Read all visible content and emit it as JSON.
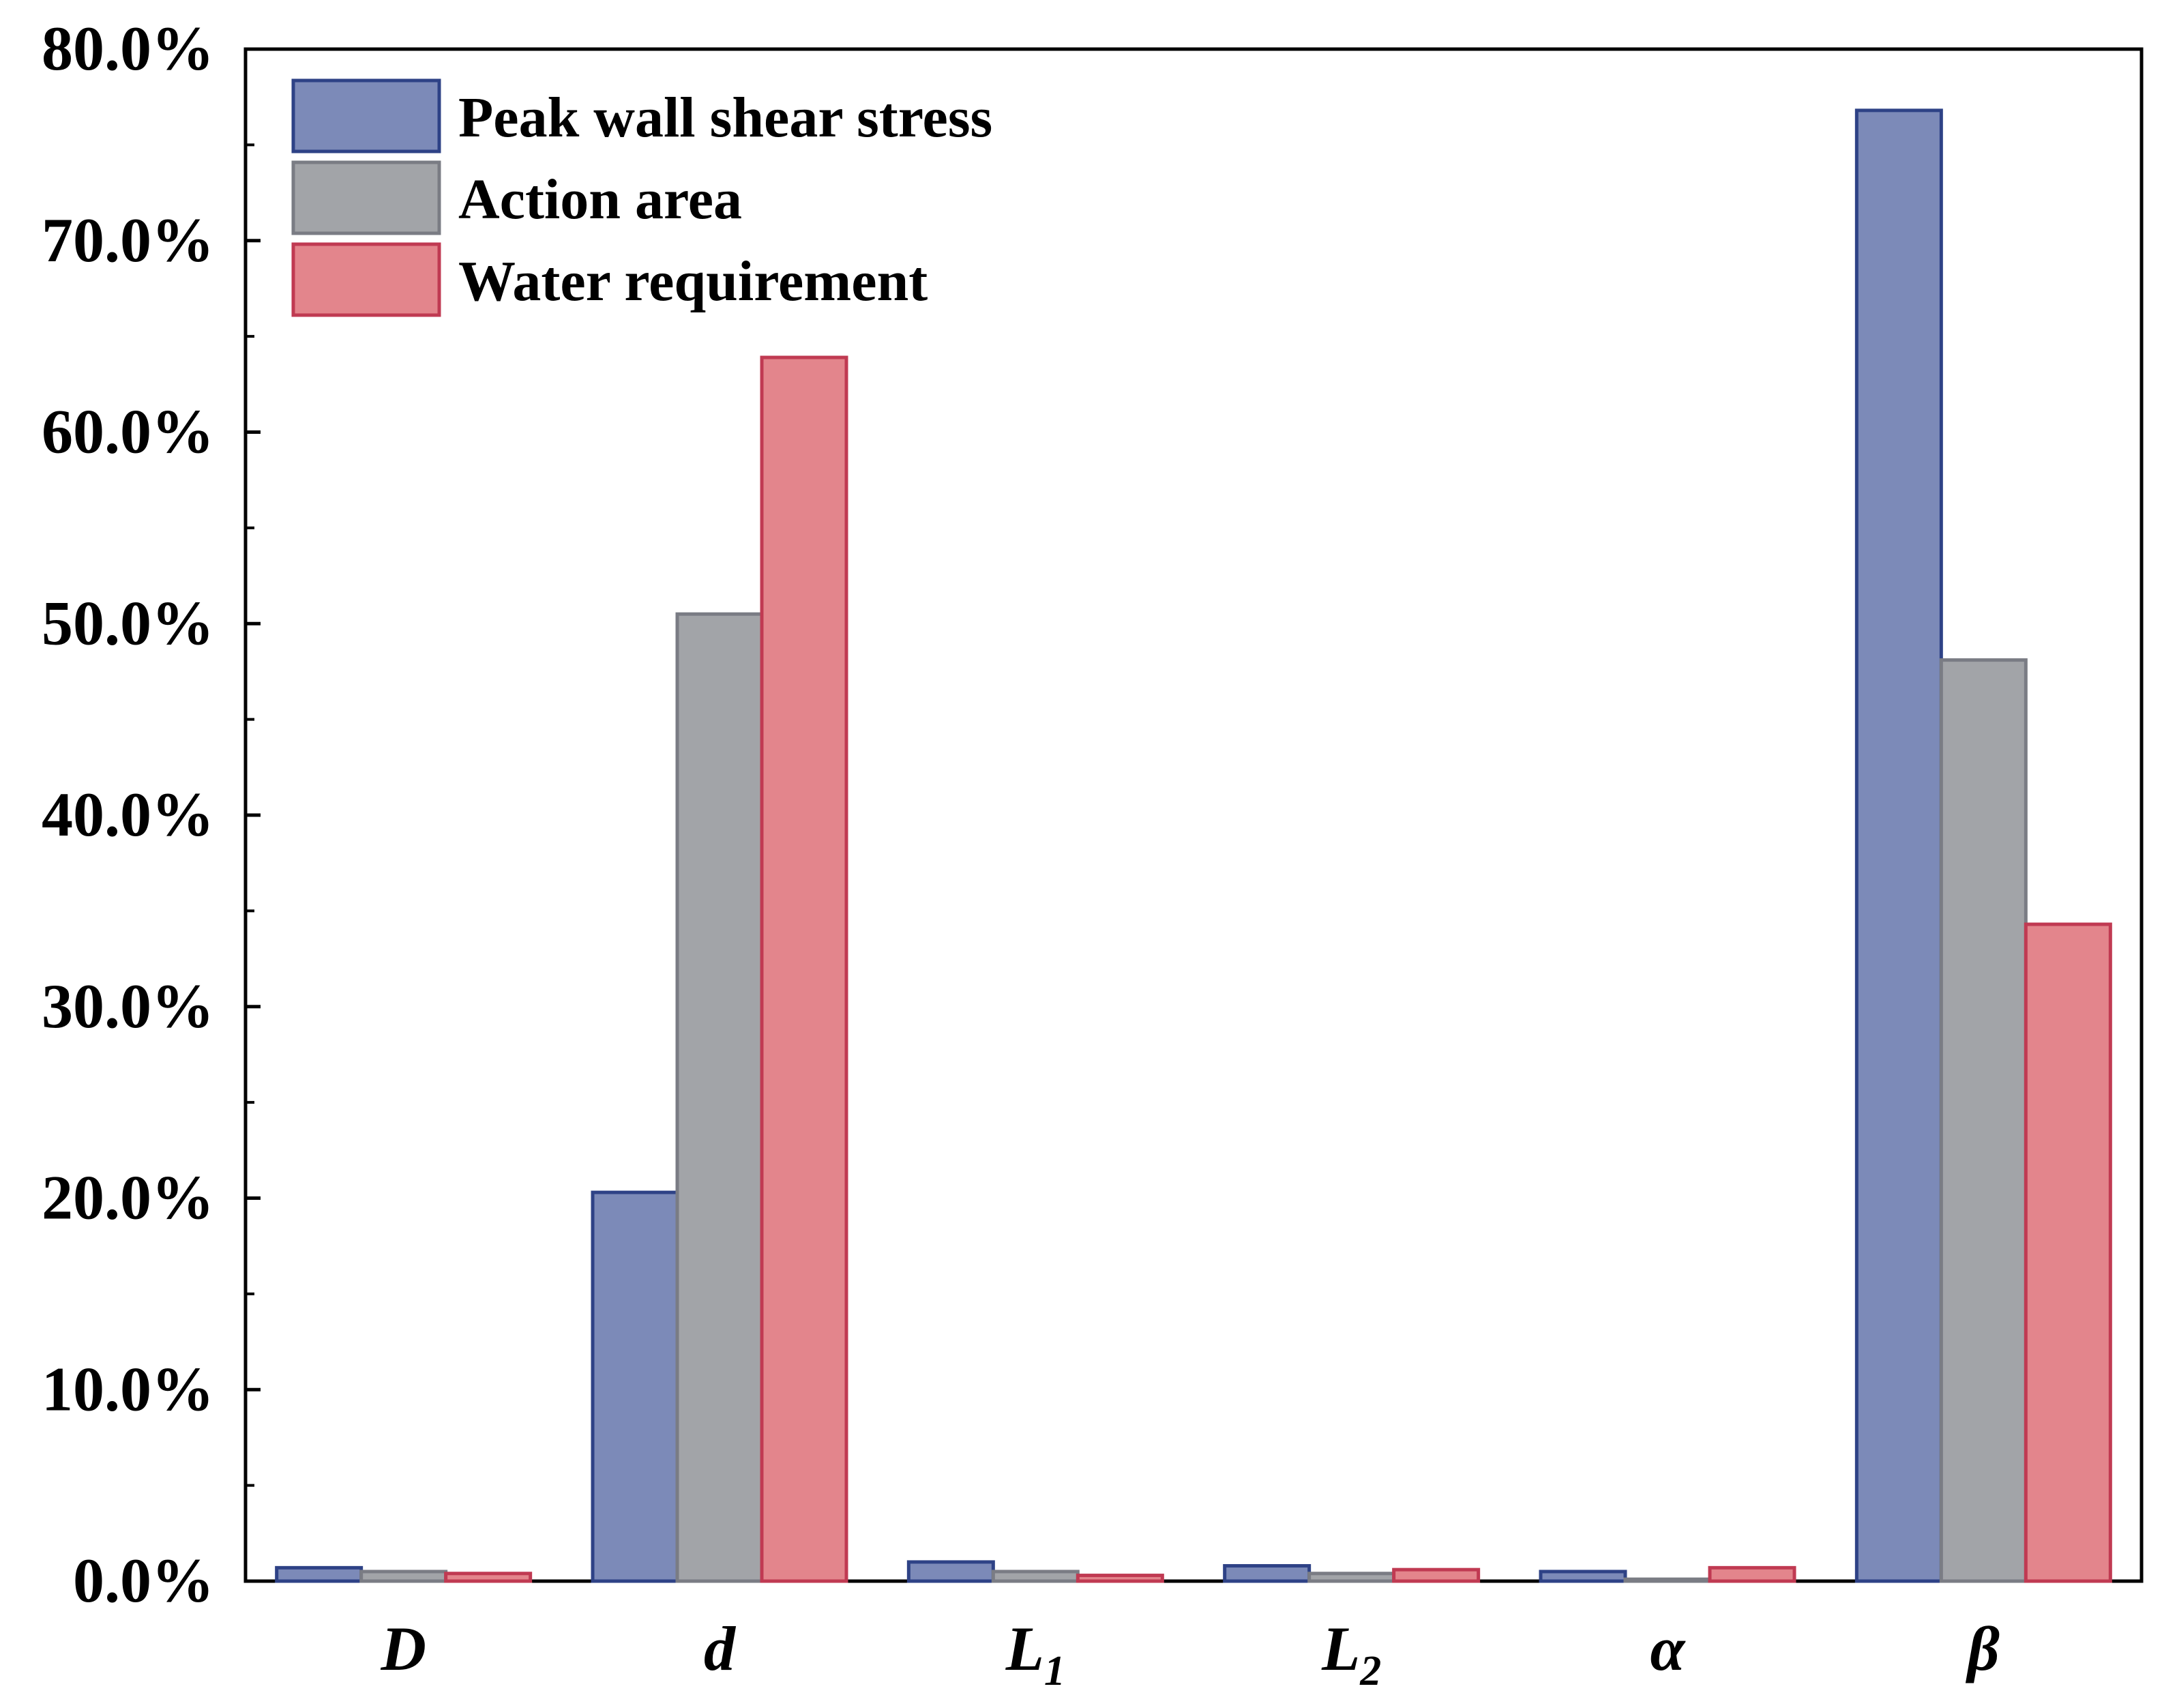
{
  "chart_data": {
    "type": "bar",
    "title": "",
    "xlabel": "",
    "ylabel": "",
    "ylim": [
      0,
      80
    ],
    "yticks": [
      0,
      10,
      20,
      30,
      40,
      50,
      60,
      70,
      80
    ],
    "ytick_labels": [
      "0.0%",
      "10.0%",
      "20.0%",
      "30.0%",
      "40.0%",
      "50.0%",
      "60.0%",
      "70.0%",
      "80.0%"
    ],
    "categories": [
      {
        "base": "D",
        "sub": ""
      },
      {
        "base": "d",
        "sub": ""
      },
      {
        "base": "L",
        "sub": "1"
      },
      {
        "base": "L",
        "sub": "2"
      },
      {
        "base": "α",
        "sub": ""
      },
      {
        "base": "β",
        "sub": ""
      }
    ],
    "series": [
      {
        "name": "Peak wall shear stress",
        "color": "#7c8ab8",
        "edge": "#2e4286",
        "values": [
          0.7,
          20.3,
          1.0,
          0.8,
          0.5,
          76.8
        ]
      },
      {
        "name": "Action area",
        "color": "#a2a4a8",
        "edge": "#7a7c84",
        "values": [
          0.5,
          50.5,
          0.5,
          0.4,
          0.1,
          48.1
        ]
      },
      {
        "name": "Water requirement",
        "color": "#e3858c",
        "edge": "#c03a52",
        "values": [
          0.4,
          63.9,
          0.3,
          0.6,
          0.7,
          34.3
        ]
      }
    ],
    "legend_position": "top-left",
    "grid": false
  }
}
